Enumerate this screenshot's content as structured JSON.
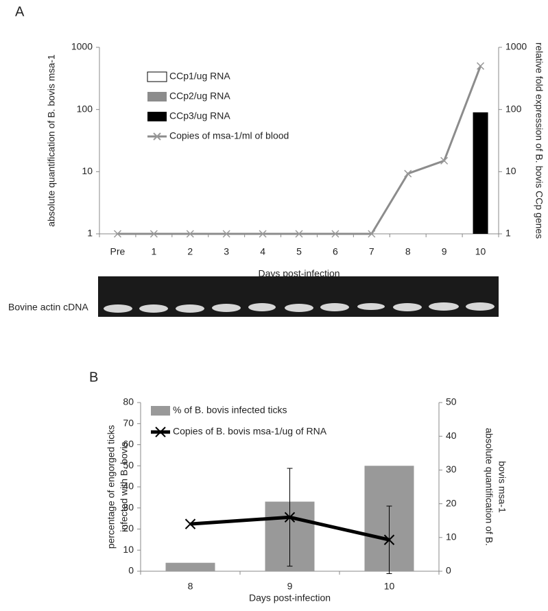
{
  "chart_data": [
    {
      "type": "combo",
      "panel_label": "A",
      "log_scale": true,
      "legend": "upper-left",
      "x_label": "Days post-infection",
      "y_label": [
        "absolute quantification of B. bovis msa-1"
      ],
      "y2_label": [
        "relative fold expression of B. bovis CCp genes"
      ],
      "categories": [
        "Pre",
        "1",
        "2",
        "3",
        "4",
        "5",
        "6",
        "7",
        "8",
        "9",
        "10"
      ],
      "ylim": [
        1,
        1000
      ],
      "yticks": [
        1,
        10,
        100,
        1000
      ],
      "y2lim": [
        1,
        1000
      ],
      "y2ticks": [
        1,
        10,
        100,
        1000
      ],
      "series": [
        {
          "name": "CCp1/ug RNA",
          "kind": "bar",
          "axis": "y2",
          "color": "#ffffff",
          "values": [
            null,
            null,
            null,
            null,
            null,
            null,
            null,
            null,
            null,
            null,
            null
          ]
        },
        {
          "name": "CCp2/ug RNA",
          "kind": "bar",
          "axis": "y2",
          "color": "#8c8c8c",
          "values": [
            null,
            null,
            null,
            null,
            null,
            null,
            null,
            null,
            null,
            null,
            null
          ]
        },
        {
          "name": "CCp3/ug RNA",
          "kind": "bar",
          "axis": "y2",
          "color": "#000000",
          "values": [
            null,
            null,
            null,
            null,
            null,
            null,
            null,
            null,
            null,
            null,
            90
          ]
        },
        {
          "name": "Copies of msa-1/ml of blood",
          "kind": "line",
          "axis": "y",
          "color": "#8c8c8c",
          "values": [
            1,
            1,
            1,
            1,
            1,
            1,
            1,
            1,
            9.3,
            15,
            500
          ]
        }
      ],
      "gel_label": "Bovine actin cDNA"
    },
    {
      "type": "combo",
      "panel_label": "B",
      "log_scale": false,
      "legend": "upper-left",
      "x_label": "Days post-infection",
      "y_label": [
        "percentage of engorged ticks",
        "infected with B. bovis"
      ],
      "y2_label": [
        "absolute quantification  of B.",
        "bovis msa-1"
      ],
      "categories": [
        "8",
        "9",
        "10"
      ],
      "ylim": [
        0,
        80
      ],
      "yticks": [
        0,
        10,
        20,
        30,
        40,
        50,
        60,
        70,
        80
      ],
      "y2lim": [
        0,
        50
      ],
      "y2ticks": [
        0,
        10,
        20,
        30,
        40,
        50
      ],
      "series": [
        {
          "name": "% of B. bovis infected ticks",
          "kind": "bar",
          "axis": "y",
          "color": "#999999",
          "values": [
            4,
            33,
            50
          ]
        },
        {
          "name": "Copies of B. bovis msa-1/ug of RNA",
          "kind": "line",
          "axis": "y2",
          "color": "#000000",
          "values": [
            14,
            16,
            9.3
          ],
          "errors": [
            null,
            14.5,
            10
          ]
        }
      ]
    }
  ]
}
